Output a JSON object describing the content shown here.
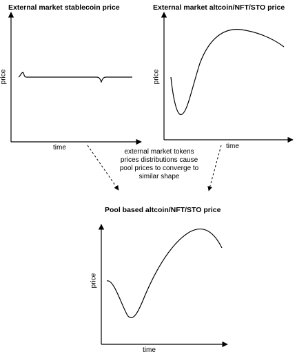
{
  "panels": {
    "stablecoin": {
      "title": "External market stablecoin price",
      "xlabel": "time",
      "ylabel": "price"
    },
    "altcoin": {
      "title": "External market altcoin/NFT/STO price",
      "xlabel": "time",
      "ylabel": "price"
    },
    "pool": {
      "title": "Pool based altcoin/NFT/STO price",
      "xlabel": "time",
      "ylabel": "price"
    }
  },
  "note": {
    "line1": "external market tokens",
    "line2": "prices distributions cause",
    "line3": "pool prices to converge to",
    "line4": "similar shape"
  },
  "colors": {
    "stroke": "#000000",
    "background": "#ffffff"
  }
}
